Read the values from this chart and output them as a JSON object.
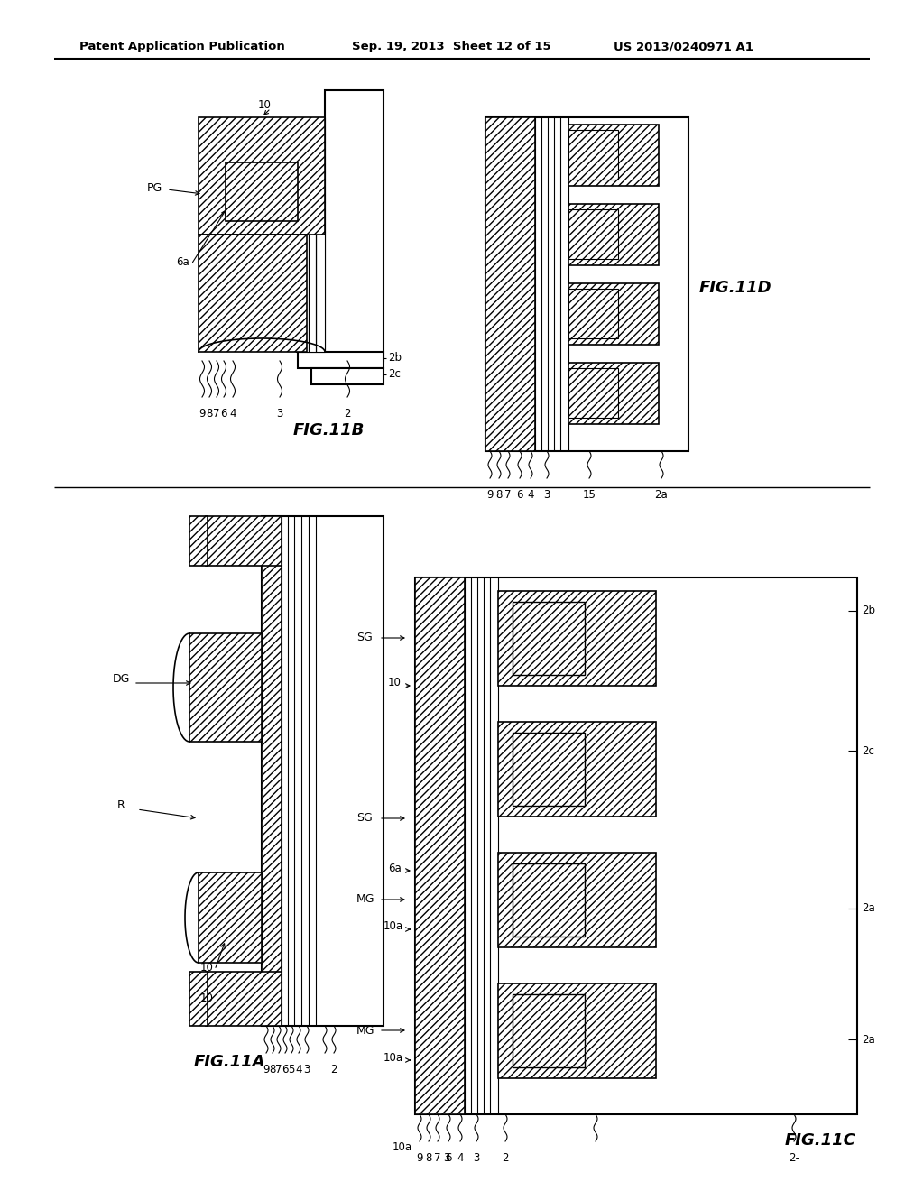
{
  "header_left": "Patent Application Publication",
  "header_center": "Sep. 19, 2013  Sheet 12 of 15",
  "header_right": "US 2013/0240971 A1",
  "background": "#ffffff"
}
